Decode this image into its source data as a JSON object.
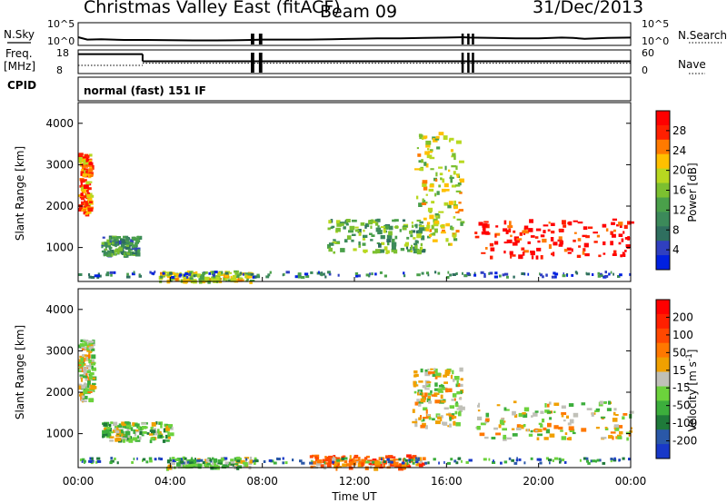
{
  "header": {
    "title_left": "Christmas Valley East (fitACF)",
    "title_mid": "Beam 09",
    "title_right": "31/Dec/2013"
  },
  "top_panels": {
    "nsky": {
      "label": "N.Sky",
      "left_ticks": [
        "10^5",
        "10^0"
      ],
      "right_ticks": [
        "10^5",
        "10^0"
      ],
      "right_label": "N.Search"
    },
    "freq": {
      "label_line1": "Freq.",
      "label_line2": "[MHz]",
      "left_ticks": [
        "18",
        "8"
      ],
      "right_ticks": [
        "60",
        "0"
      ],
      "right_label": "Nave"
    },
    "cpid": {
      "label": "CPID",
      "value": "normal (fast) 151 IF"
    }
  },
  "colors": {
    "power": [
      "#0020e0",
      "#3040c0",
      "#2f6f5f",
      "#3c8a5a",
      "#4aa04a",
      "#7cc030",
      "#b8d820",
      "#ffc000",
      "#ff7a00",
      "#ff2000",
      "#ff0000"
    ],
    "velocity": [
      "#1838c8",
      "#2a58a8",
      "#1f7a3a",
      "#3cae3c",
      "#6cd23c",
      "#c0c0b8",
      "#f0a000",
      "#ff7800",
      "#ff4800",
      "#ff2000",
      "#ff0000"
    ]
  },
  "chart_data": [
    {
      "type": "line",
      "title": "N.Sky / N.Search",
      "ylabel": "N.Sky",
      "y2label": "N.Search",
      "yscale": "log",
      "ylim": [
        1,
        100000
      ],
      "x_hours": [
        0,
        0.4,
        1,
        2,
        3,
        4,
        5,
        6,
        7,
        7.5,
        8,
        9,
        10,
        11,
        12,
        13,
        14,
        15,
        16,
        16.7,
        17,
        18,
        19,
        20,
        21,
        21.5,
        22,
        23,
        24
      ],
      "y_log10": [
        1.6,
        1.0,
        1.1,
        0.9,
        0.9,
        0.85,
        0.8,
        0.8,
        0.85,
        0.9,
        1.0,
        1.0,
        1.0,
        1.1,
        1.2,
        1.3,
        1.3,
        1.4,
        1.5,
        1.6,
        1.5,
        1.4,
        1.3,
        1.3,
        1.5,
        1.4,
        1.2,
        1.4,
        1.5
      ],
      "gaps_hours": [
        [
          7.5,
          7.65
        ],
        [
          7.85,
          8.0
        ],
        [
          16.65,
          16.75
        ],
        [
          16.9,
          17.0
        ],
        [
          17.1,
          17.2
        ]
      ]
    },
    {
      "type": "line",
      "title": "Freq. / Nave",
      "ylabel": "Freq. [MHz]",
      "y2label": "Nave",
      "ylim": [
        8,
        18
      ],
      "y2lim": [
        0,
        60
      ],
      "freq_steps": [
        {
          "from": 0,
          "to": 2.8,
          "mhz": 16.5
        },
        {
          "from": 2.8,
          "to": 24,
          "mhz": 13.2
        }
      ],
      "nave_steps": [
        {
          "from": 0,
          "to": 2.8,
          "nave": 20
        },
        {
          "from": 2.8,
          "to": 24,
          "nave": 26
        }
      ]
    },
    {
      "type": "heatmap",
      "title": "Power",
      "ylabel": "Slant Range [km]",
      "colorbar_label": "Power [dB]",
      "colorbar_ticks": [
        "28",
        "24",
        "20",
        "16",
        "12",
        "8",
        "4"
      ],
      "ylim": [
        180,
        4500
      ],
      "yticks": [
        "1000",
        "2000",
        "3000",
        "4000"
      ],
      "features": [
        {
          "x": [
            0.0,
            0.5
          ],
          "y": [
            1800,
            3300
          ],
          "level": 8
        },
        {
          "x": [
            1.0,
            2.6
          ],
          "y": [
            850,
            1300
          ],
          "level": 3
        },
        {
          "x": [
            3.5,
            7.5
          ],
          "y": [
            200,
            450
          ],
          "level": 6
        },
        {
          "x": [
            10.8,
            15.0
          ],
          "y": [
            900,
            1700
          ],
          "level": 4
        },
        {
          "x": [
            14.6,
            16.6
          ],
          "y": [
            1100,
            3800
          ],
          "level": 6
        },
        {
          "x": [
            17.2,
            24.0
          ],
          "y": [
            800,
            1700
          ],
          "level": 10
        }
      ]
    },
    {
      "type": "heatmap",
      "title": "Velocity",
      "xlabel": "Time UT",
      "ylabel": "Slant Range [km]",
      "colorbar_label": "Velocity [m s^-1]",
      "colorbar_ticks": [
        "200",
        "100",
        "50",
        "15",
        "-15",
        "-50",
        "-100",
        "-200"
      ],
      "ylim": [
        180,
        4500
      ],
      "yticks": [
        "1000",
        "2000",
        "3000",
        "4000"
      ],
      "xticks": [
        "00:00",
        "04:00",
        "08:00",
        "12:00",
        "16:00",
        "20:00",
        "00:00"
      ],
      "xlim_hours": [
        0,
        24
      ],
      "features": [
        {
          "x": [
            0.0,
            0.6
          ],
          "y": [
            1800,
            3300
          ],
          "level": 5
        },
        {
          "x": [
            1.0,
            4.0
          ],
          "y": [
            850,
            1300
          ],
          "level": 4
        },
        {
          "x": [
            3.8,
            7.5
          ],
          "y": [
            200,
            450
          ],
          "level": 4
        },
        {
          "x": [
            10.0,
            15.0
          ],
          "y": [
            200,
            500
          ],
          "level": 7
        },
        {
          "x": [
            14.5,
            16.6
          ],
          "y": [
            1200,
            2600
          ],
          "level": 5
        },
        {
          "x": [
            17.2,
            24.0
          ],
          "y": [
            900,
            1800
          ],
          "level": 5
        }
      ]
    }
  ]
}
